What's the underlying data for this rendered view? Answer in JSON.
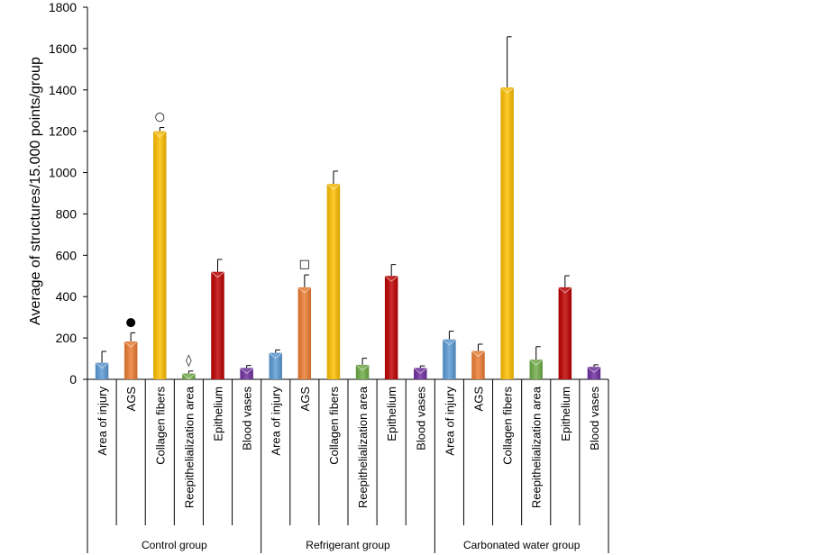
{
  "chart_data": {
    "type": "bar",
    "ylabel": "Average of structures/15.000 points/group",
    "ylim": [
      0,
      1800
    ],
    "yticks": [
      0,
      200,
      400,
      600,
      800,
      1000,
      1200,
      1400,
      1600,
      1800
    ],
    "groups": [
      {
        "label": "Control group",
        "bars": [
          {
            "category": "Area of injury",
            "value": 80,
            "error": 55,
            "color": "#5b9bd5"
          },
          {
            "category": "AGS",
            "value": 183,
            "error": 42,
            "color": "#ed7d31",
            "marker": "●"
          },
          {
            "category": "Collagen fibers",
            "value": 1200,
            "error": 18,
            "color": "#ffc000",
            "marker": "○"
          },
          {
            "category": "Reepithelialization area",
            "value": 28,
            "error": 12,
            "color": "#70ad47",
            "marker": "◊"
          },
          {
            "category": "Epithelium",
            "value": 520,
            "error": 60,
            "color": "#c00000"
          },
          {
            "category": "Blood vases",
            "value": 55,
            "error": 12,
            "color": "#7030a0"
          }
        ]
      },
      {
        "label": "Refrigerant group",
        "bars": [
          {
            "category": "Area of injury",
            "value": 128,
            "error": 14,
            "color": "#5b9bd5"
          },
          {
            "category": "AGS",
            "value": 445,
            "error": 60,
            "color": "#ed7d31",
            "marker": "□"
          },
          {
            "category": "Collagen fibers",
            "value": 945,
            "error": 62,
            "color": "#ffc000"
          },
          {
            "category": "Reepithelialization area",
            "value": 70,
            "error": 32,
            "color": "#70ad47"
          },
          {
            "category": "Epithelium",
            "value": 500,
            "error": 55,
            "color": "#c00000"
          },
          {
            "category": "Blood vases",
            "value": 55,
            "error": 10,
            "color": "#7030a0"
          }
        ]
      },
      {
        "label": "Carbonated water group",
        "bars": [
          {
            "category": "Area of injury",
            "value": 193,
            "error": 40,
            "color": "#5b9bd5"
          },
          {
            "category": "AGS",
            "value": 137,
            "error": 33,
            "color": "#ed7d31"
          },
          {
            "category": "Collagen fibers",
            "value": 1412,
            "error": 245,
            "color": "#ffc000"
          },
          {
            "category": "Reepithelialization area",
            "value": 95,
            "error": 63,
            "color": "#70ad47"
          },
          {
            "category": "Epithelium",
            "value": 445,
            "error": 56,
            "color": "#c00000"
          },
          {
            "category": "Blood vases",
            "value": 60,
            "error": 10,
            "color": "#7030a0"
          }
        ]
      }
    ]
  }
}
